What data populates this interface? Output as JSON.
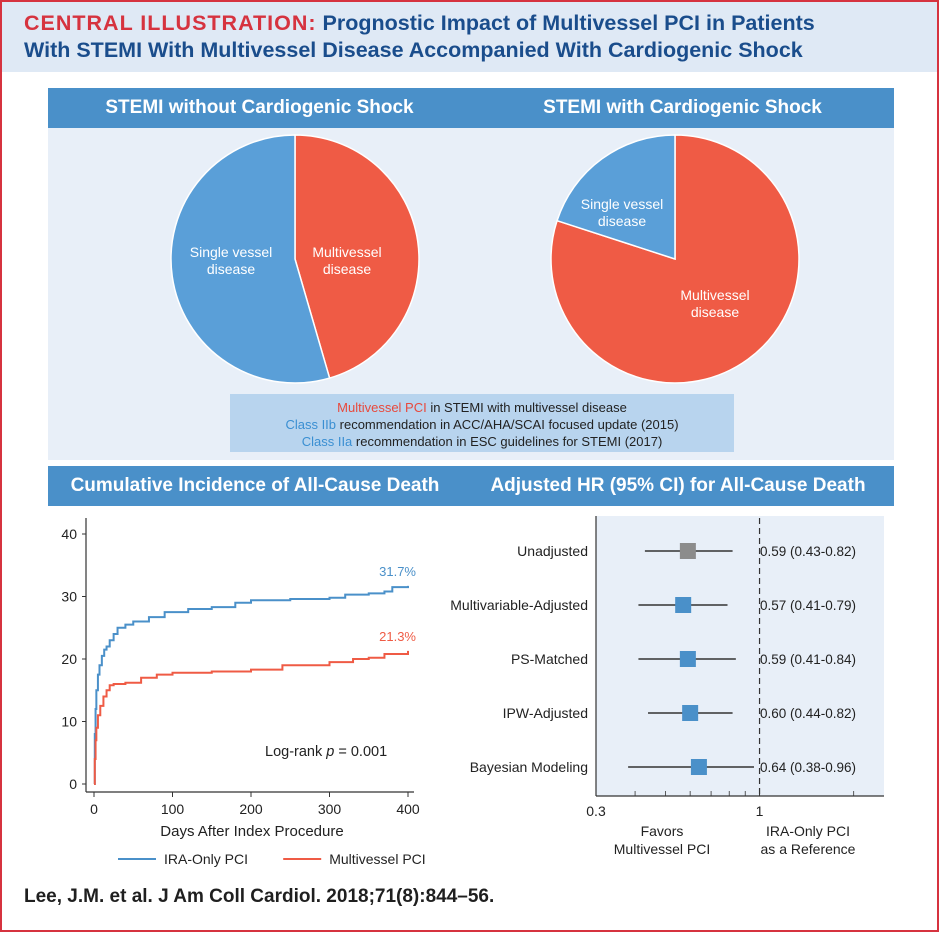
{
  "header": {
    "label": "CENTRAL ILLUSTRATION:",
    "title_line1": "Prognostic Impact of Multivessel PCI in Patients",
    "title_line2": "With STEMI With Multivessel Disease Accompanied With Cardiogenic Shock"
  },
  "colors": {
    "blue": "#4a90c9",
    "red": "#ef5b45",
    "grey": "#8c8c8c",
    "panel_bg": "#e8eff8",
    "accent_red": "#d6333f"
  },
  "pies": {
    "left_title": "STEMI without Cardiogenic Shock",
    "right_title": "STEMI with Cardiogenic Shock"
  },
  "recommendation": {
    "line1_highlight": "Multivessel PCI",
    "line1_rest": " in STEMI with multivessel disease",
    "line2_highlight": "Class IIb",
    "line2_rest": " recommendation in ACC/AHA/SCAI focused update (2015)",
    "line3_highlight": "Class IIa",
    "line3_rest": " recommendation in ESC guidelines for STEMI (2017)"
  },
  "sections": {
    "km_title": "Cumulative Incidence of All-Cause Death",
    "forest_title": "Adjusted HR (95% CI) for All-Cause Death"
  },
  "citation": "Lee, J.M. et al. J Am Coll Cardiol. 2018;71(8):844–56.",
  "chart_data": [
    {
      "type": "pie",
      "title": "STEMI without Cardiogenic Shock",
      "labels": [
        "Multivessel disease",
        "Single vessel disease"
      ],
      "values": [
        45.5,
        54.5
      ],
      "colors": [
        "#ef5b45",
        "#5a9fd8"
      ]
    },
    {
      "type": "pie",
      "title": "STEMI with Cardiogenic Shock",
      "labels": [
        "Multivessel disease",
        "Single vessel disease"
      ],
      "values": [
        80,
        20
      ],
      "colors": [
        "#ef5b45",
        "#5a9fd8"
      ]
    },
    {
      "type": "line",
      "title": "Cumulative Incidence of All-Cause Death",
      "xlabel": "Days After Index Procedure",
      "ylabel": "",
      "xlim": [
        0,
        400
      ],
      "ylim": [
        0,
        40
      ],
      "xticks": [
        0,
        100,
        200,
        300,
        400
      ],
      "yticks": [
        0,
        10,
        20,
        30,
        40
      ],
      "annotation": "Log-rank p = 0.001",
      "legend": "bottom",
      "series": [
        {
          "name": "IRA-Only PCI",
          "color": "#4a90c9",
          "end_label": "31.7%",
          "x": [
            0,
            1,
            2,
            3,
            5,
            7,
            10,
            13,
            16,
            20,
            25,
            30,
            40,
            50,
            70,
            90,
            120,
            150,
            180,
            200,
            250,
            300,
            320,
            350,
            370,
            380,
            400
          ],
          "y": [
            0,
            8,
            12,
            15,
            17.5,
            19,
            20.5,
            21.5,
            22,
            23,
            24,
            25,
            25.5,
            26,
            26.7,
            27.5,
            28,
            28.3,
            29,
            29.4,
            29.6,
            29.8,
            30.3,
            30.5,
            30.8,
            31.5,
            31.7
          ]
        },
        {
          "name": "Multivessel PCI",
          "color": "#ef5b45",
          "end_label": "21.3%",
          "x": [
            0,
            1,
            2,
            3,
            5,
            8,
            12,
            16,
            20,
            25,
            40,
            60,
            80,
            100,
            150,
            200,
            240,
            300,
            330,
            350,
            370,
            400
          ],
          "y": [
            0,
            4,
            7,
            9,
            11,
            12.5,
            14,
            15,
            15.8,
            16,
            16.2,
            17,
            17.5,
            17.8,
            18,
            18.3,
            19,
            19.5,
            20,
            20.2,
            20.8,
            21.3
          ]
        }
      ]
    },
    {
      "type": "forest",
      "title": "Adjusted HR (95% CI) for All-Cause Death",
      "scale": "log",
      "xlim": [
        0.3,
        2.5
      ],
      "xticks": [
        0.3,
        1
      ],
      "reference": 1,
      "left_label": [
        "Favors",
        "Multivessel PCI"
      ],
      "right_label": [
        "IRA-Only PCI",
        "as a Reference"
      ],
      "rows": [
        {
          "label": "Unadjusted",
          "hr": 0.59,
          "lo": 0.43,
          "hi": 0.82,
          "text": "0.59 (0.43-0.82)",
          "color": "#8c8c8c"
        },
        {
          "label": "Multivariable-Adjusted",
          "hr": 0.57,
          "lo": 0.41,
          "hi": 0.79,
          "text": "0.57 (0.41-0.79)",
          "color": "#4a90c9"
        },
        {
          "label": "PS-Matched",
          "hr": 0.59,
          "lo": 0.41,
          "hi": 0.84,
          "text": "0.59 (0.41-0.84)",
          "color": "#4a90c9"
        },
        {
          "label": "IPW-Adjusted",
          "hr": 0.6,
          "lo": 0.44,
          "hi": 0.82,
          "text": "0.60 (0.44-0.82)",
          "color": "#4a90c9"
        },
        {
          "label": "Bayesian Modeling",
          "hr": 0.64,
          "lo": 0.38,
          "hi": 0.96,
          "text": "0.64 (0.38-0.96)",
          "color": "#4a90c9"
        }
      ]
    }
  ]
}
